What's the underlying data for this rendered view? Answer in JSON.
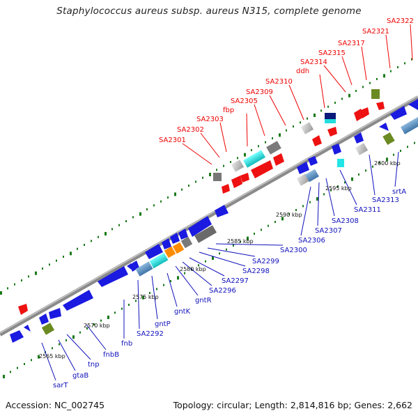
{
  "title": "Staphylococcus aureus subsp. aureus N315, complete genome",
  "footer": {
    "accession": "Accession: NC_002745",
    "summary": "Topology: circular; Length: 2,814,816 bp; Genes: 2,662"
  },
  "colors": {
    "upper_label": "#ee0000",
    "lower_label": "#1010bb",
    "backbone": "#8a8a8a",
    "tick": "#1a7a1a"
  },
  "scale_labels": [
    "2565 kbp",
    "2570 kbp",
    "2575 kbp",
    "2580 kbp",
    "2585 kbp",
    "2590 kbp",
    "2595 kbp",
    "2600 kbp"
  ],
  "upper_genes": [
    "SA2301",
    "SA2302",
    "SA2303",
    "fbp",
    "SA2305",
    "SA2309",
    "SA2310",
    "ddh",
    "SA2314",
    "SA2315",
    "SA2317",
    "SA2321",
    "SA2322"
  ],
  "lower_genes": [
    "sarT",
    "gtaB",
    "tnp",
    "fnbB",
    "fnb",
    "SA2292",
    "gntP",
    "gntK",
    "gntR",
    "SA2296",
    "SA2297",
    "SA2298",
    "SA2299",
    "SA2300",
    "SA2306",
    "SA2307",
    "SA2308",
    "SA2311",
    "SA2313",
    "srtA"
  ]
}
